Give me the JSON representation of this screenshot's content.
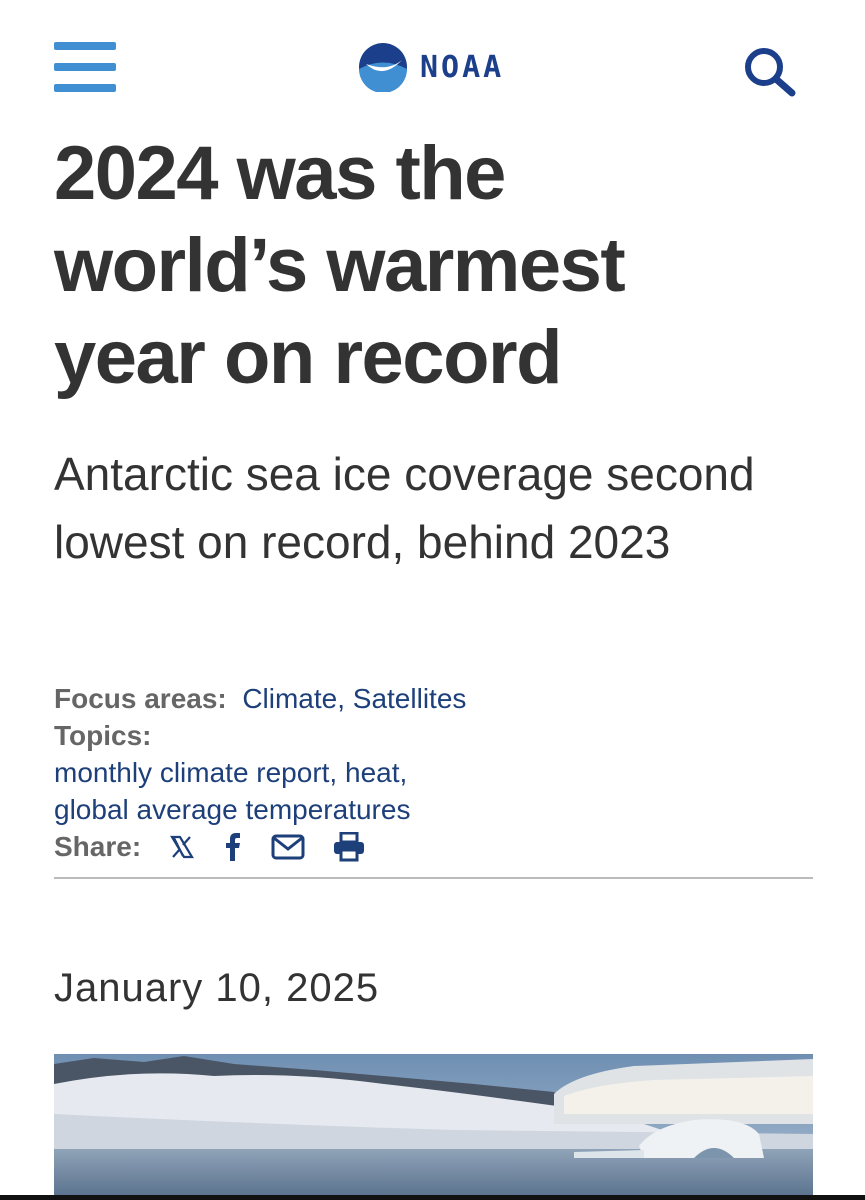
{
  "header": {
    "logo_text": "NOAA"
  },
  "article": {
    "title": "2024 was the world’s warmest year on record",
    "subtitle": "Antarctic sea ice coverage second lowest on record, behind 2023",
    "focus_areas": {
      "label": "Focus areas:",
      "value": "Climate, Satellites"
    },
    "topics": {
      "label": "Topics:",
      "lines": [
        "monthly climate report, heat,",
        "global average temperatures"
      ]
    },
    "share": {
      "label": "Share:"
    },
    "date": "January 10, 2025"
  }
}
